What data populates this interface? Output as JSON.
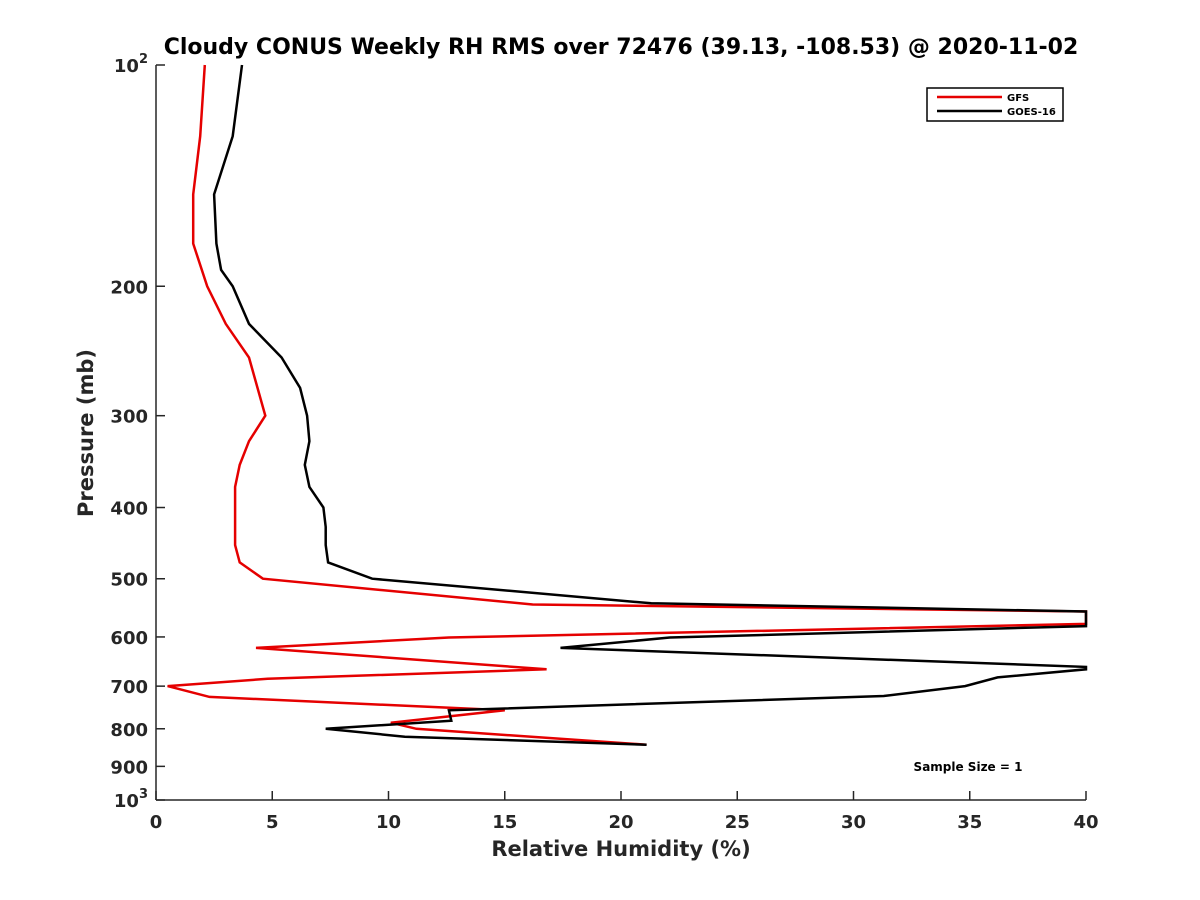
{
  "chart_data": {
    "type": "line",
    "title": "Cloudy CONUS Weekly RH RMS over 72476 (39.13, -108.53) @ 2020-11-02",
    "xlabel": "Relative Humidity (%)",
    "ylabel": "Pressure (mb)",
    "xlim": [
      0,
      40
    ],
    "ylim": [
      100,
      1000
    ],
    "y_scale": "log",
    "y_reversed": true,
    "x_ticks": [
      0,
      5,
      10,
      15,
      20,
      25,
      30,
      35,
      40
    ],
    "y_ticks": [
      {
        "value": 100,
        "base": "10",
        "exp": "2"
      },
      {
        "value": 200,
        "label": "200"
      },
      {
        "value": 300,
        "label": "300"
      },
      {
        "value": 400,
        "label": "400"
      },
      {
        "value": 500,
        "label": "500"
      },
      {
        "value": 600,
        "label": "600"
      },
      {
        "value": 700,
        "label": "700"
      },
      {
        "value": 800,
        "label": "800"
      },
      {
        "value": 900,
        "label": "900"
      },
      {
        "value": 1000,
        "base": "10",
        "exp": "3"
      }
    ],
    "grid": false,
    "legend_position": "top-right",
    "series": [
      {
        "name": "GFS",
        "color": "#e50000",
        "points": [
          [
            2.1,
            100
          ],
          [
            1.9,
            125
          ],
          [
            1.6,
            150
          ],
          [
            1.6,
            175
          ],
          [
            2.2,
            200
          ],
          [
            3.0,
            225
          ],
          [
            4.0,
            250
          ],
          [
            4.7,
            300
          ],
          [
            4.0,
            325
          ],
          [
            3.6,
            350
          ],
          [
            3.4,
            375
          ],
          [
            3.4,
            400
          ],
          [
            3.4,
            425
          ],
          [
            3.4,
            450
          ],
          [
            3.6,
            475
          ],
          [
            4.6,
            500
          ],
          [
            16.2,
            542
          ],
          [
            40.0,
            554
          ],
          [
            40.0,
            576
          ],
          [
            12.6,
            601
          ],
          [
            4.3,
            621
          ],
          [
            16.8,
            664
          ],
          [
            4.8,
            684
          ],
          [
            0.5,
            700
          ],
          [
            2.3,
            724
          ],
          [
            15.0,
            755
          ],
          [
            10.1,
            785
          ],
          [
            11.2,
            800
          ],
          [
            21.1,
            841
          ]
        ]
      },
      {
        "name": "GOES-16",
        "color": "#000000",
        "points": [
          [
            3.7,
            100
          ],
          [
            3.3,
            125
          ],
          [
            2.5,
            150
          ],
          [
            2.6,
            175
          ],
          [
            2.8,
            190
          ],
          [
            3.3,
            200
          ],
          [
            4.0,
            225
          ],
          [
            5.4,
            250
          ],
          [
            6.2,
            275
          ],
          [
            6.5,
            300
          ],
          [
            6.6,
            325
          ],
          [
            6.4,
            350
          ],
          [
            6.6,
            375
          ],
          [
            7.2,
            400
          ],
          [
            7.3,
            425
          ],
          [
            7.3,
            450
          ],
          [
            7.4,
            475
          ],
          [
            9.3,
            500
          ],
          [
            21.3,
            540
          ],
          [
            40.0,
            554
          ],
          [
            40.0,
            580
          ],
          [
            22.1,
            601
          ],
          [
            17.4,
            621
          ],
          [
            40.0,
            659
          ],
          [
            40.0,
            664
          ],
          [
            36.2,
            681
          ],
          [
            34.8,
            700
          ],
          [
            31.3,
            722
          ],
          [
            12.6,
            755
          ],
          [
            12.7,
            780
          ],
          [
            7.3,
            800
          ],
          [
            10.7,
            820
          ],
          [
            21.1,
            841
          ]
        ]
      }
    ],
    "annotation": "Sample Size = 1"
  }
}
